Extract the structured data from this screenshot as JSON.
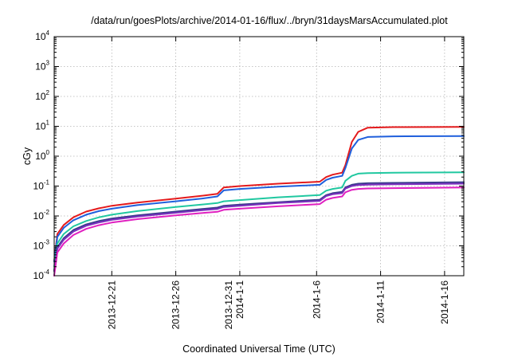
{
  "chart_data": {
    "type": "line",
    "title": "/data/run/goesPlots/archive/2014-01-16/flux/../bryn/31daysMarsAccumulated.plot",
    "xlabel": "Coordinated Universal Time (UTC)",
    "ylabel": "cGy",
    "y_scale": "log",
    "grid": true,
    "legend": "none",
    "xlim": [
      "2013-12-16T12:00",
      "2014-01-17T12:00"
    ],
    "ylim": [
      0.0001,
      10000
    ],
    "x_ticks": [
      {
        "x": "2013-12-21T00:00",
        "label": [
          "2013-12-21"
        ]
      },
      {
        "x": "2013-12-26T00:00",
        "label": [
          "2013-12-26"
        ]
      },
      {
        "x": "2013-12-31T00:00",
        "label": [
          "2013-12-31",
          "2014-1-1"
        ]
      },
      {
        "x": "2014-01-06T00:00",
        "label": [
          "2014-1-6"
        ]
      },
      {
        "x": "2014-01-11T00:00",
        "label": [
          "2014-1-11"
        ]
      },
      {
        "x": "2014-01-16T00:00",
        "label": [
          "2014-1-16"
        ]
      }
    ],
    "y_ticks": [
      {
        "y": 0.0001,
        "base": "10",
        "exp": "-4"
      },
      {
        "y": 0.001,
        "base": "10",
        "exp": "-3"
      },
      {
        "y": 0.01,
        "base": "10",
        "exp": "-2"
      },
      {
        "y": 0.1,
        "base": "10",
        "exp": "-1"
      },
      {
        "y": 1,
        "base": "10",
        "exp": "0"
      },
      {
        "y": 10,
        "base": "10",
        "exp": "1"
      },
      {
        "y": 100,
        "base": "10",
        "exp": "2"
      },
      {
        "y": 1000,
        "base": "10",
        "exp": "3"
      },
      {
        "y": 10000,
        "base": "10",
        "exp": "4"
      }
    ],
    "series": [
      {
        "color": "#e41a1c",
        "points": [
          [
            "2013-12-16T12:00",
            0.0003
          ],
          [
            "2013-12-16T18:00",
            0.0025
          ],
          [
            "2013-12-17T06:00",
            0.005
          ],
          [
            "2013-12-18T00:00",
            0.009
          ],
          [
            "2013-12-19T00:00",
            0.014
          ],
          [
            "2013-12-20T00:00",
            0.018
          ],
          [
            "2013-12-21T00:00",
            0.022
          ],
          [
            "2013-12-23T00:00",
            0.028
          ],
          [
            "2013-12-26T00:00",
            0.038
          ],
          [
            "2013-12-28T00:00",
            0.047
          ],
          [
            "2013-12-29T06:00",
            0.055
          ],
          [
            "2013-12-29T18:00",
            0.09
          ],
          [
            "2013-12-31T00:00",
            0.1
          ],
          [
            "2014-01-03T00:00",
            0.12
          ],
          [
            "2014-01-06T06:00",
            0.14
          ],
          [
            "2014-01-06T18:00",
            0.2
          ],
          [
            "2014-01-07T06:00",
            0.24
          ],
          [
            "2014-01-08T00:00",
            0.28
          ],
          [
            "2014-01-08T06:00",
            0.5
          ],
          [
            "2014-01-08T18:00",
            3.0
          ],
          [
            "2014-01-09T06:00",
            6.5
          ],
          [
            "2014-01-10T00:00",
            9.0
          ],
          [
            "2014-01-12T00:00",
            9.4
          ],
          [
            "2014-01-17T12:00",
            9.5
          ]
        ]
      },
      {
        "color": "#1f5fdc",
        "points": [
          [
            "2013-12-16T12:00",
            0.0003
          ],
          [
            "2013-12-16T18:00",
            0.002
          ],
          [
            "2013-12-17T06:00",
            0.004
          ],
          [
            "2013-12-18T00:00",
            0.0072
          ],
          [
            "2013-12-19T00:00",
            0.011
          ],
          [
            "2013-12-20T00:00",
            0.0145
          ],
          [
            "2013-12-21T00:00",
            0.0175
          ],
          [
            "2013-12-23T00:00",
            0.023
          ],
          [
            "2013-12-26T00:00",
            0.031
          ],
          [
            "2013-12-28T00:00",
            0.038
          ],
          [
            "2013-12-29T06:00",
            0.045
          ],
          [
            "2013-12-29T18:00",
            0.072
          ],
          [
            "2013-12-31T00:00",
            0.08
          ],
          [
            "2014-01-03T00:00",
            0.095
          ],
          [
            "2014-01-06T06:00",
            0.11
          ],
          [
            "2014-01-06T18:00",
            0.16
          ],
          [
            "2014-01-07T06:00",
            0.19
          ],
          [
            "2014-01-08T00:00",
            0.22
          ],
          [
            "2014-01-08T06:00",
            0.4
          ],
          [
            "2014-01-08T18:00",
            1.8
          ],
          [
            "2014-01-09T06:00",
            3.5
          ],
          [
            "2014-01-10T00:00",
            4.4
          ],
          [
            "2014-01-12T00:00",
            4.6
          ],
          [
            "2014-01-17T12:00",
            4.7
          ]
        ]
      },
      {
        "color": "#20c8a0",
        "points": [
          [
            "2013-12-16T12:00",
            0.0002
          ],
          [
            "2013-12-16T18:00",
            0.0012
          ],
          [
            "2013-12-17T06:00",
            0.0025
          ],
          [
            "2013-12-18T00:00",
            0.0045
          ],
          [
            "2013-12-19T00:00",
            0.0068
          ],
          [
            "2013-12-20T00:00",
            0.009
          ],
          [
            "2013-12-21T00:00",
            0.011
          ],
          [
            "2013-12-23T00:00",
            0.0145
          ],
          [
            "2013-12-26T00:00",
            0.02
          ],
          [
            "2013-12-28T00:00",
            0.024
          ],
          [
            "2013-12-29T06:00",
            0.027
          ],
          [
            "2013-12-29T18:00",
            0.031
          ],
          [
            "2013-12-31T00:00",
            0.034
          ],
          [
            "2014-01-03T00:00",
            0.042
          ],
          [
            "2014-01-06T06:00",
            0.05
          ],
          [
            "2014-01-06T18:00",
            0.07
          ],
          [
            "2014-01-07T06:00",
            0.08
          ],
          [
            "2014-01-08T00:00",
            0.09
          ],
          [
            "2014-01-08T06:00",
            0.15
          ],
          [
            "2014-01-08T18:00",
            0.22
          ],
          [
            "2014-01-09T06:00",
            0.26
          ],
          [
            "2014-01-10T00:00",
            0.27
          ],
          [
            "2014-01-12T00:00",
            0.28
          ],
          [
            "2014-01-17T12:00",
            0.29
          ]
        ]
      },
      {
        "color": "#3a3a8c",
        "points": [
          [
            "2013-12-16T12:00",
            0.00015
          ],
          [
            "2013-12-16T18:00",
            0.0009
          ],
          [
            "2013-12-17T06:00",
            0.0018
          ],
          [
            "2013-12-18T00:00",
            0.0034
          ],
          [
            "2013-12-19T00:00",
            0.0052
          ],
          [
            "2013-12-20T00:00",
            0.0068
          ],
          [
            "2013-12-21T00:00",
            0.0082
          ],
          [
            "2013-12-23T00:00",
            0.0105
          ],
          [
            "2013-12-26T00:00",
            0.014
          ],
          [
            "2013-12-28T00:00",
            0.017
          ],
          [
            "2013-12-29T06:00",
            0.019
          ],
          [
            "2013-12-29T18:00",
            0.022
          ],
          [
            "2013-12-31T00:00",
            0.024
          ],
          [
            "2014-01-03T00:00",
            0.029
          ],
          [
            "2014-01-06T06:00",
            0.035
          ],
          [
            "2014-01-06T18:00",
            0.05
          ],
          [
            "2014-01-07T06:00",
            0.058
          ],
          [
            "2014-01-08T00:00",
            0.064
          ],
          [
            "2014-01-08T06:00",
            0.09
          ],
          [
            "2014-01-08T18:00",
            0.11
          ],
          [
            "2014-01-09T06:00",
            0.12
          ],
          [
            "2014-01-10T00:00",
            0.125
          ],
          [
            "2014-01-12T00:00",
            0.128
          ],
          [
            "2014-01-17T12:00",
            0.135
          ]
        ]
      },
      {
        "color": "#7b2fbe",
        "points": [
          [
            "2013-12-16T12:00",
            0.00014
          ],
          [
            "2013-12-16T18:00",
            0.0008
          ],
          [
            "2013-12-17T06:00",
            0.0016
          ],
          [
            "2013-12-18T00:00",
            0.003
          ],
          [
            "2013-12-19T00:00",
            0.0047
          ],
          [
            "2013-12-20T00:00",
            0.0061
          ],
          [
            "2013-12-21T00:00",
            0.0074
          ],
          [
            "2013-12-23T00:00",
            0.0095
          ],
          [
            "2013-12-26T00:00",
            0.0128
          ],
          [
            "2013-12-28T00:00",
            0.0155
          ],
          [
            "2013-12-29T06:00",
            0.0172
          ],
          [
            "2013-12-29T18:00",
            0.02
          ],
          [
            "2013-12-31T00:00",
            0.022
          ],
          [
            "2014-01-03T00:00",
            0.027
          ],
          [
            "2014-01-06T06:00",
            0.032
          ],
          [
            "2014-01-06T18:00",
            0.046
          ],
          [
            "2014-01-07T06:00",
            0.053
          ],
          [
            "2014-01-08T00:00",
            0.058
          ],
          [
            "2014-01-08T06:00",
            0.082
          ],
          [
            "2014-01-08T18:00",
            0.1
          ],
          [
            "2014-01-09T06:00",
            0.108
          ],
          [
            "2014-01-10T00:00",
            0.112
          ],
          [
            "2014-01-12T00:00",
            0.115
          ],
          [
            "2014-01-17T12:00",
            0.12
          ]
        ]
      },
      {
        "color": "#e020c0",
        "points": [
          [
            "2013-12-16T12:00",
            0.0001
          ],
          [
            "2013-12-16T18:00",
            0.0006
          ],
          [
            "2013-12-17T06:00",
            0.0012
          ],
          [
            "2013-12-18T00:00",
            0.0023
          ],
          [
            "2013-12-19T00:00",
            0.0037
          ],
          [
            "2013-12-20T00:00",
            0.0049
          ],
          [
            "2013-12-21T00:00",
            0.006
          ],
          [
            "2013-12-23T00:00",
            0.0078
          ],
          [
            "2013-12-26T00:00",
            0.0105
          ],
          [
            "2013-12-28T00:00",
            0.0125
          ],
          [
            "2013-12-29T06:00",
            0.0138
          ],
          [
            "2013-12-29T18:00",
            0.016
          ],
          [
            "2013-12-31T00:00",
            0.0175
          ],
          [
            "2014-01-03T00:00",
            0.021
          ],
          [
            "2014-01-06T06:00",
            0.025
          ],
          [
            "2014-01-06T18:00",
            0.035
          ],
          [
            "2014-01-07T06:00",
            0.04
          ],
          [
            "2014-01-08T00:00",
            0.045
          ],
          [
            "2014-01-08T06:00",
            0.062
          ],
          [
            "2014-01-08T18:00",
            0.075
          ],
          [
            "2014-01-09T06:00",
            0.08
          ],
          [
            "2014-01-10T00:00",
            0.083
          ],
          [
            "2014-01-12T00:00",
            0.085
          ],
          [
            "2014-01-17T12:00",
            0.09
          ]
        ]
      }
    ]
  }
}
